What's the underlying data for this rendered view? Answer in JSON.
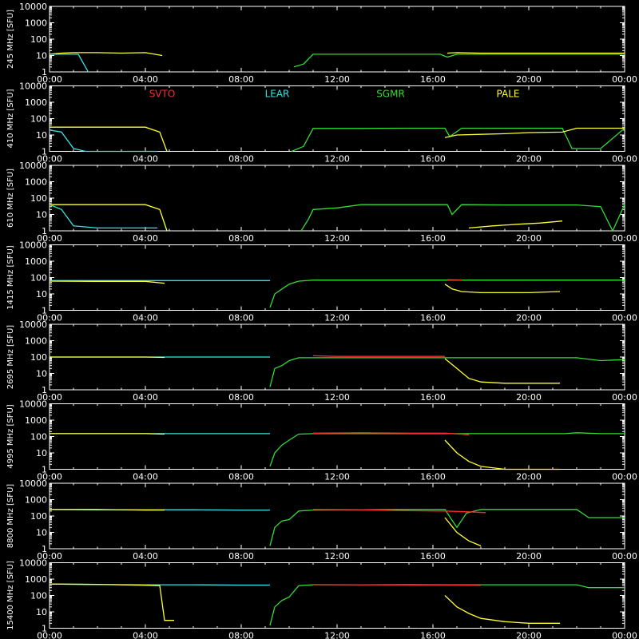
{
  "chart_data": {
    "type": "line",
    "y_unit_label": "[SFU]",
    "y_scale": "log",
    "ylim": [
      1,
      10000
    ],
    "y_ticks": [
      "1",
      "10",
      "100",
      "1000",
      "10000"
    ],
    "x_ticks": [
      "00:00",
      "04:00",
      "08:00",
      "12:00",
      "16:00",
      "20:00",
      "00:00"
    ],
    "xlim_hours": [
      0,
      24
    ],
    "legend": [
      {
        "name": "SVTO",
        "color": "#ff2a2a"
      },
      {
        "name": "LEAR",
        "color": "#33e6e6"
      },
      {
        "name": "SGMR",
        "color": "#33dd33"
      },
      {
        "name": "PALE",
        "color": "#ffff33"
      }
    ],
    "legend_placement": "top, inside second panel",
    "panels": [
      {
        "freq": "245 MHz",
        "series": [
          {
            "name": "LEAR",
            "color": "#33e6e6",
            "x": [
              0,
              0.4,
              0.8,
              1.2,
              1.6
            ],
            "y": [
              12,
              12,
              12,
              12,
              1.1
            ]
          },
          {
            "name": "PALE",
            "color": "#ffff33",
            "x": [
              0,
              0.5,
              1,
              2,
              3,
              4,
              4.7
            ],
            "y": [
              12,
              14,
              15,
              15,
              14,
              15,
              10
            ]
          },
          {
            "name": "SGMR",
            "color": "#33dd33",
            "x": [
              10.2,
              10.6,
              11,
              13,
              15,
              16.3,
              16.6,
              17,
              19,
              21,
              21.5,
              22,
              24
            ],
            "y": [
              2,
              3,
              12,
              12,
              12,
              12,
              8,
              12,
              12,
              12,
              12,
              12,
              12
            ]
          },
          {
            "name": "PALE",
            "color": "#ffff33",
            "x": [
              16.6,
              17,
              18,
              20,
              22,
              24
            ],
            "y": [
              14,
              15,
              14,
              14,
              14,
              14
            ]
          }
        ]
      },
      {
        "freq": "410 MHz",
        "series": [
          {
            "name": "LEAR",
            "color": "#33e6e6",
            "x": [
              0,
              0.5,
              1,
              1.5,
              2,
              4.5
            ],
            "y": [
              20,
              15,
              1.5,
              1,
              1,
              1
            ]
          },
          {
            "name": "PALE",
            "color": "#ffff33",
            "x": [
              0,
              2,
              4,
              4.6,
              4.9
            ],
            "y": [
              30,
              30,
              30,
              15,
              1
            ]
          },
          {
            "name": "SGMR",
            "color": "#33dd33",
            "x": [
              10.1,
              10.6,
              11,
              13,
              15,
              16.5,
              16.7,
              17.2,
              19,
              21,
              21.4,
              21.8,
              23,
              24
            ],
            "y": [
              1,
              2,
              25,
              25,
              26,
              26,
              8,
              26,
              26,
              26,
              26,
              1.5,
              1.5,
              26
            ]
          },
          {
            "name": "PALE",
            "color": "#ffff33",
            "x": [
              16.5,
              17,
              18,
              19,
              20,
              21.4,
              22,
              24
            ],
            "y": [
              7,
              10,
              11,
              12,
              14,
              15,
              26,
              26
            ]
          }
        ]
      },
      {
        "freq": "610 MHz",
        "series": [
          {
            "name": "LEAR",
            "color": "#33e6e6",
            "x": [
              0,
              0.5,
              1,
              2,
              4.5
            ],
            "y": [
              40,
              20,
              2,
              1.5,
              1.5
            ]
          },
          {
            "name": "PALE",
            "color": "#ffff33",
            "x": [
              0,
              2,
              4,
              4.6,
              4.9
            ],
            "y": [
              40,
              40,
              40,
              20,
              1
            ]
          },
          {
            "name": "SGMR",
            "color": "#33dd33",
            "x": [
              10.5,
              10.8,
              11,
              12,
              13,
              15,
              16.6,
              16.8,
              17.2,
              19,
              21.4,
              22,
              23,
              23.5,
              24
            ],
            "y": [
              1,
              5,
              20,
              25,
              40,
              40,
              40,
              10,
              40,
              38,
              38,
              38,
              30,
              1,
              40
            ]
          },
          {
            "name": "PALE",
            "color": "#ffff33",
            "x": [
              17.5,
              18.5,
              19.5,
              20.5,
              21.4
            ],
            "y": [
              1.5,
              2,
              2.5,
              3,
              4
            ]
          }
        ]
      },
      {
        "freq": "1415 MHz",
        "series": [
          {
            "name": "LEAR",
            "color": "#33e6e6",
            "x": [
              0,
              2,
              4,
              6,
              8,
              9.2
            ],
            "y": [
              65,
              65,
              65,
              65,
              65,
              65
            ]
          },
          {
            "name": "PALE",
            "color": "#ffff33",
            "x": [
              0,
              2,
              4,
              4.8
            ],
            "y": [
              60,
              58,
              58,
              45
            ]
          },
          {
            "name": "SGMR",
            "color": "#33dd33",
            "x": [
              9.2,
              9.4,
              9.7,
              10,
              10.4,
              11,
              13,
              15,
              16.5,
              18,
              20,
              22,
              24
            ],
            "y": [
              1.5,
              10,
              20,
              40,
              60,
              70,
              70,
              70,
              70,
              70,
              70,
              70,
              70
            ]
          },
          {
            "name": "PALE",
            "color": "#ffff33",
            "x": [
              16.5,
              16.8,
              17.2,
              18,
              19,
              20,
              21.3
            ],
            "y": [
              40,
              20,
              14,
              12,
              12,
              12,
              14
            ]
          },
          {
            "name": "SVTO",
            "color": "#ff2a2a",
            "x": [
              16.6,
              17.2
            ],
            "y": [
              75,
              72
            ]
          }
        ]
      },
      {
        "freq": "2695 MHz",
        "series": [
          {
            "name": "LEAR",
            "color": "#33e6e6",
            "x": [
              0,
              2,
              4,
              6,
              8,
              9.2
            ],
            "y": [
              100,
              100,
              100,
              100,
              100,
              100
            ]
          },
          {
            "name": "PALE",
            "color": "#ffff33",
            "x": [
              0,
              2,
              4,
              4.8
            ],
            "y": [
              100,
              100,
              100,
              95
            ]
          },
          {
            "name": "SGMR",
            "color": "#33dd33",
            "x": [
              9.2,
              9.4,
              9.7,
              10,
              10.4,
              11,
              13,
              15,
              16.5,
              18,
              20,
              22,
              23,
              24
            ],
            "y": [
              1.5,
              20,
              30,
              60,
              90,
              90,
              90,
              90,
              90,
              90,
              90,
              90,
              60,
              70
            ]
          },
          {
            "name": "PALE",
            "color": "#ffff33",
            "x": [
              16.5,
              17,
              17.5,
              18,
              19,
              20,
              21.3
            ],
            "y": [
              80,
              20,
              5,
              3,
              2.5,
              2.5,
              2.5
            ]
          },
          {
            "name": "SVTO",
            "color": "#ff2a2a",
            "x": [
              11,
              12,
              13,
              14,
              15,
              16.5
            ],
            "y": [
              120,
              110,
              110,
              110,
              110,
              110
            ]
          }
        ]
      },
      {
        "freq": "4995 MHz",
        "series": [
          {
            "name": "LEAR",
            "color": "#33e6e6",
            "x": [
              0,
              2,
              4,
              6,
              8,
              9.2
            ],
            "y": [
              150,
              150,
              150,
              150,
              150,
              150
            ]
          },
          {
            "name": "PALE",
            "color": "#ffff33",
            "x": [
              0,
              2,
              4,
              4.8
            ],
            "y": [
              150,
              150,
              150,
              140
            ]
          },
          {
            "name": "SGMR",
            "color": "#33dd33",
            "x": [
              9.2,
              9.4,
              9.7,
              10,
              10.4,
              11,
              13,
              15,
              16.5,
              18,
              20,
              21.5,
              22,
              23,
              24
            ],
            "y": [
              1.5,
              10,
              30,
              60,
              140,
              150,
              150,
              150,
              150,
              150,
              150,
              150,
              170,
              150,
              150
            ]
          },
          {
            "name": "PALE",
            "color": "#ffff33",
            "x": [
              16.5,
              17,
              17.5,
              18,
              19,
              20,
              21.3
            ],
            "y": [
              60,
              10,
              3,
              1.5,
              1,
              1,
              1
            ]
          },
          {
            "name": "SVTO",
            "color": "#ff2a2a",
            "x": [
              11,
              13,
              15,
              16.5,
              17.5
            ],
            "y": [
              160,
              170,
              160,
              160,
              130
            ]
          }
        ]
      },
      {
        "freq": "8800 MHz",
        "series": [
          {
            "name": "LEAR",
            "color": "#33e6e6",
            "x": [
              0,
              2,
              4,
              6,
              8,
              9.2
            ],
            "y": [
              250,
              240,
              240,
              240,
              230,
              230
            ]
          },
          {
            "name": "PALE",
            "color": "#ffff33",
            "x": [
              0,
              2,
              4,
              4.8
            ],
            "y": [
              250,
              250,
              230,
              230
            ]
          },
          {
            "name": "SGMR",
            "color": "#33dd33",
            "x": [
              9.2,
              9.4,
              9.7,
              10,
              10.4,
              11,
              13,
              15,
              16.5,
              17,
              17.4,
              18,
              20,
              22,
              22.5,
              24
            ],
            "y": [
              1.5,
              20,
              50,
              60,
              200,
              230,
              240,
              250,
              250,
              20,
              150,
              250,
              250,
              250,
              80,
              80
            ]
          },
          {
            "name": "PALE",
            "color": "#ffff33",
            "x": [
              16.5,
              17,
              17.5,
              18
            ],
            "y": [
              80,
              10,
              3,
              1.5
            ]
          },
          {
            "name": "SVTO",
            "color": "#ff2a2a",
            "x": [
              11,
              13,
              15,
              16.5,
              17.5,
              18.2
            ],
            "y": [
              250,
              240,
              210,
              200,
              180,
              160
            ]
          }
        ]
      },
      {
        "freq": "15400 MHz",
        "series": [
          {
            "name": "LEAR",
            "color": "#33e6e6",
            "x": [
              0,
              2,
              4,
              6,
              8,
              9.2
            ],
            "y": [
              500,
              470,
              450,
              450,
              430,
              430
            ]
          },
          {
            "name": "PALE",
            "color": "#ffff33",
            "x": [
              0,
              2,
              4,
              4.6,
              4.8,
              5.2
            ],
            "y": [
              500,
              470,
              420,
              400,
              3,
              3
            ]
          },
          {
            "name": "SGMR",
            "color": "#33dd33",
            "x": [
              9.2,
              9.4,
              9.7,
              10,
              10.4,
              11,
              13,
              15,
              16.5,
              18,
              20,
              22,
              22.5,
              24
            ],
            "y": [
              1.5,
              20,
              50,
              80,
              400,
              450,
              450,
              460,
              450,
              450,
              450,
              450,
              300,
              300
            ]
          },
          {
            "name": "PALE",
            "color": "#ffff33",
            "x": [
              16.5,
              17,
              17.5,
              18,
              19,
              20,
              21.3
            ],
            "y": [
              100,
              20,
              8,
              4,
              2.5,
              2,
              2
            ]
          },
          {
            "name": "SVTO",
            "color": "#ff2a2a",
            "x": [
              11,
              13,
              15,
              16.5,
              17.5,
              18
            ],
            "y": [
              460,
              450,
              440,
              430,
              420,
              410
            ]
          }
        ]
      }
    ]
  }
}
